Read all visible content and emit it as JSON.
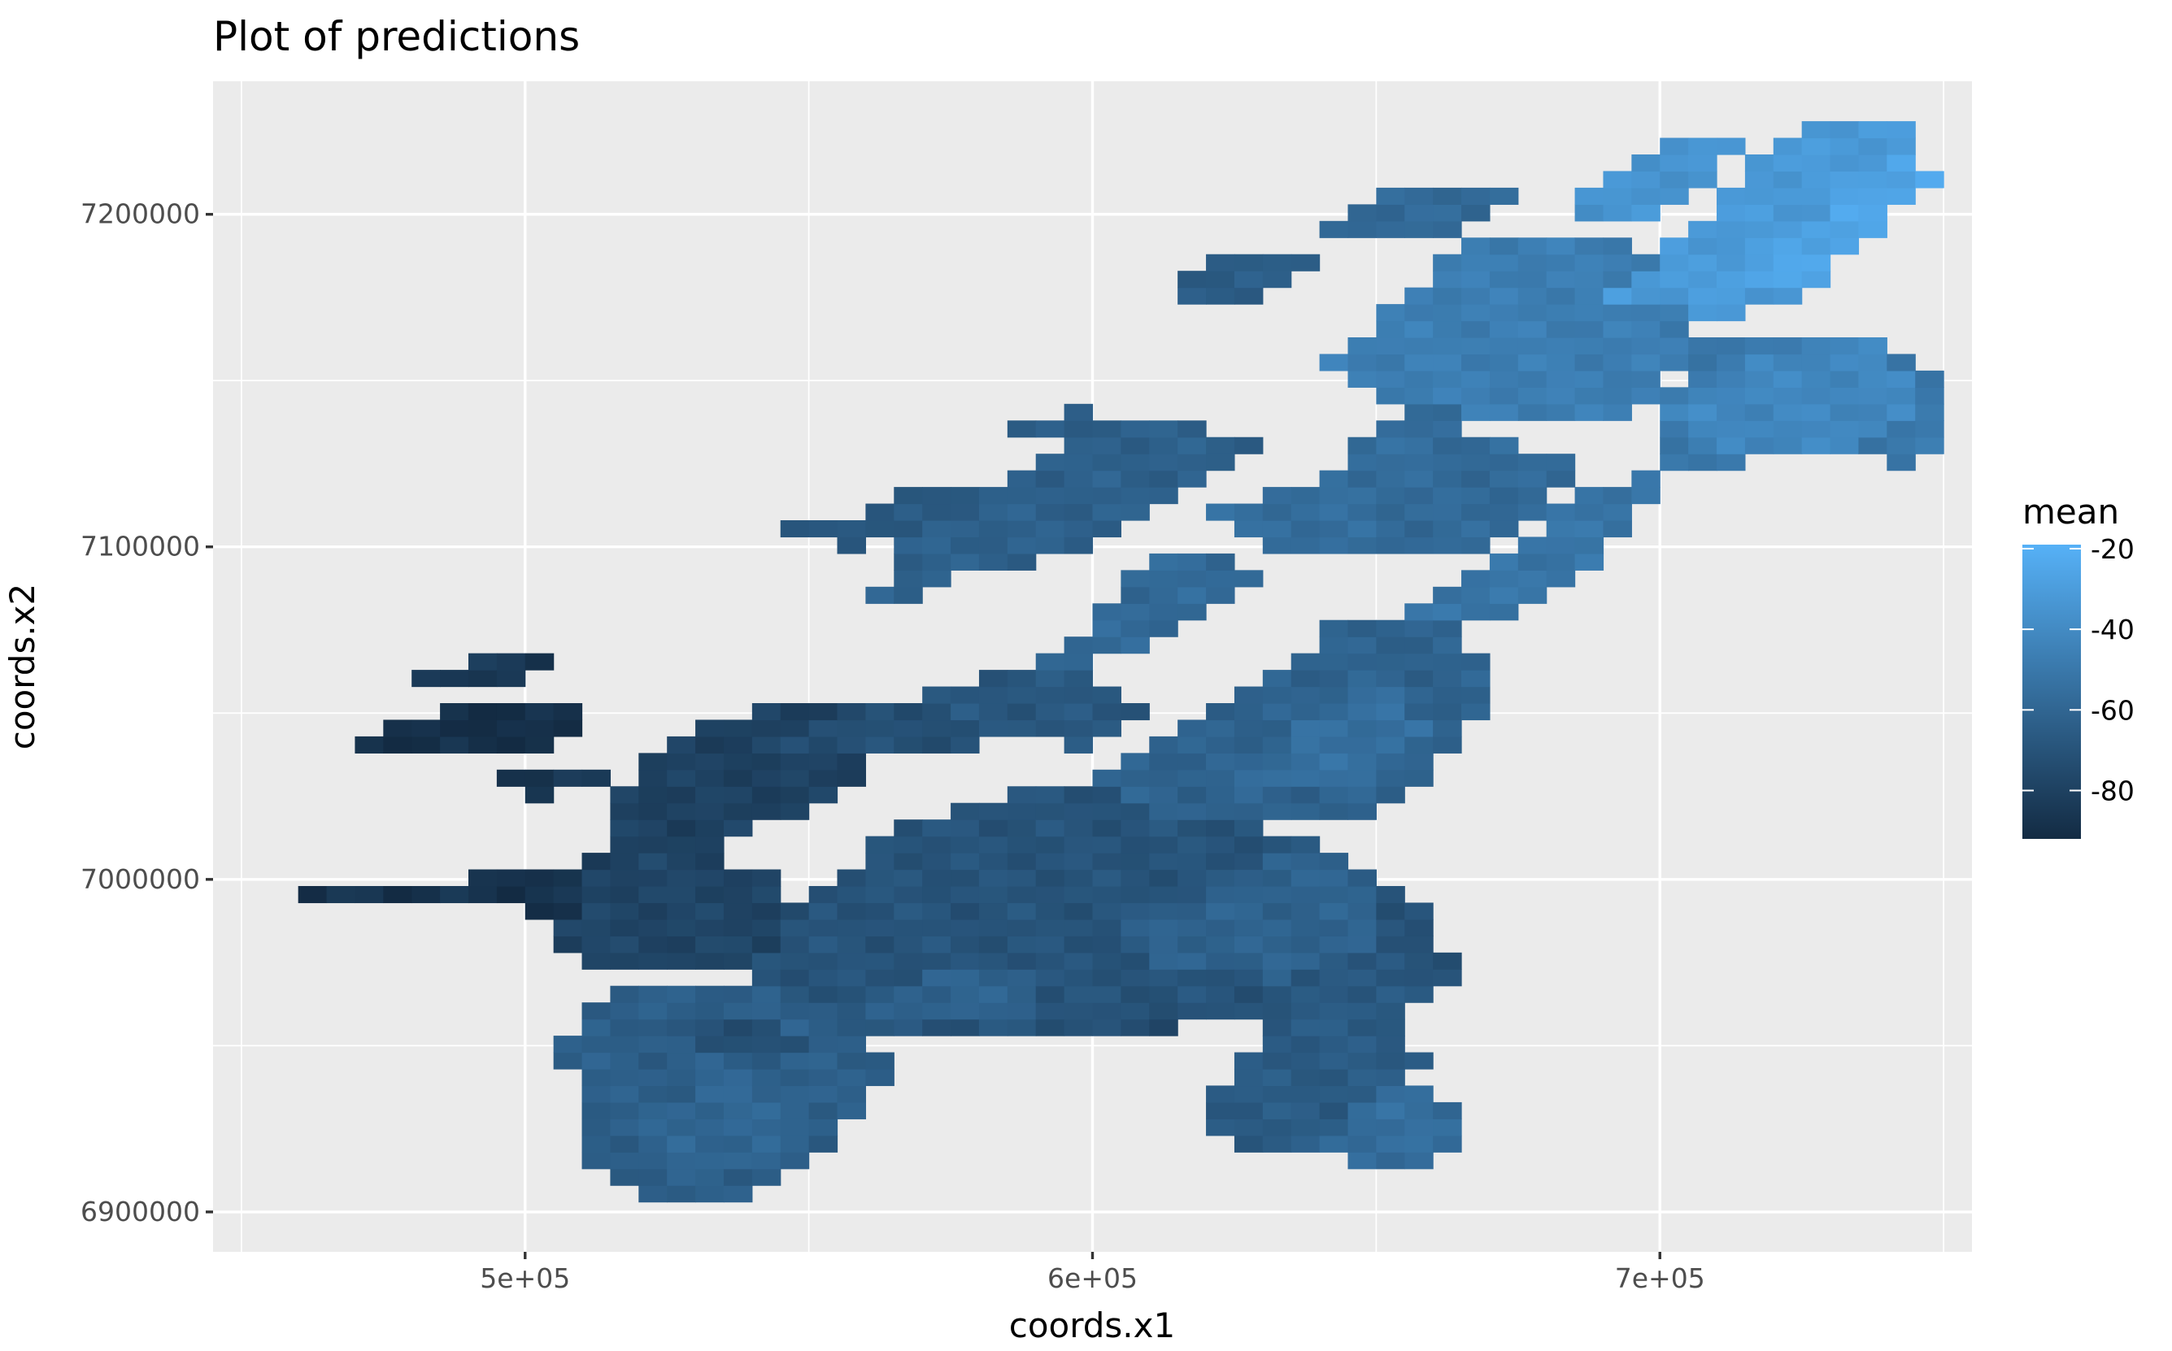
{
  "chart_data": {
    "type": "heatmap",
    "title": "Plot of predictions",
    "xlabel": "coords.x1",
    "ylabel": "coords.x2",
    "xlim": [
      445000,
      755000
    ],
    "ylim": [
      6888000,
      7240000
    ],
    "x_ticks": [
      {
        "value": 500000,
        "label": "5e+05"
      },
      {
        "value": 600000,
        "label": "6e+05"
      },
      {
        "value": 700000,
        "label": "7e+05"
      }
    ],
    "y_ticks": [
      {
        "value": 6900000,
        "label": "6900000"
      },
      {
        "value": 7000000,
        "label": "7000000"
      },
      {
        "value": 7100000,
        "label": "7100000"
      },
      {
        "value": 7200000,
        "label": "7200000"
      }
    ],
    "grid": true,
    "legend": {
      "title": "mean",
      "position": "right",
      "min": -92,
      "max": -19,
      "ticks": [
        {
          "value": -20,
          "label": "-20"
        },
        {
          "value": -40,
          "label": "-40"
        },
        {
          "value": -60,
          "label": "-60"
        },
        {
          "value": -80,
          "label": "-80"
        }
      ],
      "low_color": "#132b43",
      "high_color": "#56b1f7"
    },
    "cell_size": [
      5000,
      5000
    ],
    "regions": [
      {
        "mean": -88,
        "polygon": [
          [
            460000,
            6998000
          ],
          [
            485000,
            7000000
          ],
          [
            510000,
            7003000
          ],
          [
            515000,
            7000000
          ],
          [
            510000,
            6990000
          ],
          [
            480000,
            6992000
          ],
          [
            462000,
            6992000
          ]
        ]
      },
      {
        "mean": -90,
        "polygon": [
          [
            470000,
            7040000
          ],
          [
            485000,
            7052000
          ],
          [
            500000,
            7056000
          ],
          [
            512000,
            7050000
          ],
          [
            505000,
            7040000
          ],
          [
            485000,
            7038000
          ]
        ]
      },
      {
        "mean": -85,
        "polygon": [
          [
            480000,
            7060000
          ],
          [
            495000,
            7068000
          ],
          [
            505000,
            7066000
          ],
          [
            500000,
            7058000
          ],
          [
            488000,
            7058000
          ]
        ]
      },
      {
        "mean": -86,
        "polygon": [
          [
            490000,
            7028000
          ],
          [
            505000,
            7035000
          ],
          [
            515000,
            7030000
          ],
          [
            505000,
            7025000
          ]
        ]
      },
      {
        "mean": -80,
        "polygon": [
          [
            512000,
            7004000
          ],
          [
            518000,
            7030000
          ],
          [
            530000,
            7045000
          ],
          [
            545000,
            7055000
          ],
          [
            560000,
            7050000
          ],
          [
            560000,
            7030000
          ],
          [
            545000,
            7018000
          ],
          [
            530000,
            7005000
          ]
        ]
      },
      {
        "mean": -78,
        "polygon": [
          [
            505000,
            6980000
          ],
          [
            510000,
            7000000
          ],
          [
            525000,
            7010000
          ],
          [
            545000,
            7000000
          ],
          [
            550000,
            6985000
          ],
          [
            535000,
            6972000
          ],
          [
            515000,
            6972000
          ]
        ]
      },
      {
        "mean": -70,
        "polygon": [
          [
            535000,
            6965000
          ],
          [
            545000,
            6985000
          ],
          [
            555000,
            7000000
          ],
          [
            565000,
            7015000
          ],
          [
            590000,
            7028000
          ],
          [
            615000,
            7025000
          ],
          [
            640000,
            7010000
          ],
          [
            660000,
            6990000
          ],
          [
            665000,
            6970000
          ],
          [
            650000,
            6955000
          ],
          [
            620000,
            6958000
          ],
          [
            600000,
            6955000
          ],
          [
            580000,
            6950000
          ],
          [
            560000,
            6955000
          ]
        ]
      },
      {
        "mean": -64,
        "polygon": [
          [
            505000,
            6950000
          ],
          [
            515000,
            6965000
          ],
          [
            535000,
            6970000
          ],
          [
            555000,
            6960000
          ],
          [
            565000,
            6945000
          ],
          [
            560000,
            6930000
          ],
          [
            550000,
            6915000
          ],
          [
            535000,
            6903000
          ],
          [
            520000,
            6905000
          ],
          [
            508000,
            6915000
          ],
          [
            512000,
            6935000
          ]
        ]
      },
      {
        "mean": -60,
        "polygon": [
          [
            520000,
            6925000
          ],
          [
            535000,
            6945000
          ],
          [
            550000,
            6935000
          ],
          [
            545000,
            6915000
          ],
          [
            530000,
            6910000
          ]
        ]
      },
      {
        "mean": -72,
        "polygon": [
          [
            525000,
            6958000
          ],
          [
            545000,
            6960000
          ],
          [
            548000,
            6950000
          ],
          [
            530000,
            6948000
          ]
        ]
      },
      {
        "mean": -62,
        "polygon": [
          [
            560000,
            6960000
          ],
          [
            575000,
            6975000
          ],
          [
            590000,
            6972000
          ],
          [
            590000,
            6960000
          ]
        ]
      },
      {
        "mean": -74,
        "polygon": [
          [
            600000,
            6958000
          ],
          [
            615000,
            6962000
          ],
          [
            618000,
            6952000
          ],
          [
            603000,
            6950000
          ]
        ]
      },
      {
        "mean": -62,
        "polygon": [
          [
            605000,
            6985000
          ],
          [
            625000,
            7000000
          ],
          [
            640000,
            7012000
          ],
          [
            652000,
            6998000
          ],
          [
            650000,
            6980000
          ],
          [
            635000,
            6970000
          ],
          [
            615000,
            6972000
          ]
        ]
      },
      {
        "mean": -66,
        "polygon": [
          [
            620000,
            6930000
          ],
          [
            630000,
            6955000
          ],
          [
            645000,
            6975000
          ],
          [
            655000,
            6965000
          ],
          [
            658000,
            6945000
          ],
          [
            655000,
            6925000
          ],
          [
            640000,
            6918000
          ],
          [
            625000,
            6920000
          ]
        ]
      },
      {
        "mean": -56,
        "polygon": [
          [
            640000,
            6920000
          ],
          [
            650000,
            6935000
          ],
          [
            660000,
            6940000
          ],
          [
            665000,
            6925000
          ],
          [
            660000,
            6915000
          ],
          [
            648000,
            6914000
          ]
        ]
      },
      {
        "mean": -62,
        "polygon": [
          [
            598000,
            7030000
          ],
          [
            612000,
            7045000
          ],
          [
            630000,
            7060000
          ],
          [
            645000,
            7080000
          ],
          [
            665000,
            7075000
          ],
          [
            672000,
            7060000
          ],
          [
            665000,
            7040000
          ],
          [
            650000,
            7020000
          ],
          [
            630000,
            7015000
          ],
          [
            612000,
            7020000
          ]
        ]
      },
      {
        "mean": -55,
        "polygon": [
          [
            625000,
            7030000
          ],
          [
            640000,
            7050000
          ],
          [
            650000,
            7060000
          ],
          [
            660000,
            7045000
          ],
          [
            650000,
            7030000
          ],
          [
            635000,
            7025000
          ]
        ]
      },
      {
        "mean": -72,
        "polygon": [
          [
            545000,
            7040000
          ],
          [
            560000,
            7052000
          ],
          [
            580000,
            7055000
          ],
          [
            585000,
            7042000
          ],
          [
            565000,
            7035000
          ]
        ]
      },
      {
        "mean": -68,
        "polygon": [
          [
            570000,
            7055000
          ],
          [
            585000,
            7063000
          ],
          [
            600000,
            7062000
          ],
          [
            610000,
            7050000
          ],
          [
            598000,
            7040000
          ],
          [
            580000,
            7045000
          ]
        ]
      },
      {
        "mean": -58,
        "polygon": [
          [
            585000,
            7063000
          ],
          [
            600000,
            7075000
          ],
          [
            605000,
            7090000
          ],
          [
            615000,
            7100000
          ],
          [
            630000,
            7092000
          ],
          [
            620000,
            7078000
          ],
          [
            605000,
            7066000
          ]
        ]
      },
      {
        "mean": -63,
        "polygon": [
          [
            560000,
            7080000
          ],
          [
            575000,
            7090000
          ],
          [
            590000,
            7095000
          ],
          [
            600000,
            7100000
          ],
          [
            610000,
            7110000
          ],
          [
            620000,
            7120000
          ],
          [
            630000,
            7130000
          ],
          [
            615000,
            7140000
          ],
          [
            600000,
            7138000
          ],
          [
            590000,
            7125000
          ],
          [
            575000,
            7112000
          ],
          [
            565000,
            7098000
          ]
        ]
      },
      {
        "mean": -56,
        "polygon": [
          [
            620000,
            7110000
          ],
          [
            640000,
            7120000
          ],
          [
            650000,
            7135000
          ],
          [
            660000,
            7145000
          ],
          [
            670000,
            7130000
          ],
          [
            660000,
            7110000
          ],
          [
            645000,
            7095000
          ],
          [
            630000,
            7100000
          ]
        ]
      },
      {
        "mean": -52,
        "polygon": [
          [
            655000,
            7080000
          ],
          [
            670000,
            7095000
          ],
          [
            685000,
            7115000
          ],
          [
            700000,
            7125000
          ],
          [
            695000,
            7105000
          ],
          [
            685000,
            7090000
          ],
          [
            672000,
            7075000
          ]
        ]
      },
      {
        "mean": -58,
        "polygon": [
          [
            645000,
            7100000
          ],
          [
            655000,
            7120000
          ],
          [
            670000,
            7135000
          ],
          [
            685000,
            7125000
          ],
          [
            680000,
            7110000
          ],
          [
            665000,
            7095000
          ]
        ]
      },
      {
        "mean": -60,
        "polygon": [
          [
            655000,
            7150000
          ],
          [
            670000,
            7170000
          ],
          [
            680000,
            7180000
          ],
          [
            695000,
            7175000
          ],
          [
            690000,
            7160000
          ],
          [
            675000,
            7148000
          ]
        ]
      },
      {
        "mean": -47,
        "polygon": [
          [
            640000,
            7155000
          ],
          [
            655000,
            7175000
          ],
          [
            665000,
            7190000
          ],
          [
            680000,
            7195000
          ],
          [
            695000,
            7190000
          ],
          [
            705000,
            7175000
          ],
          [
            705000,
            7155000
          ],
          [
            695000,
            7140000
          ],
          [
            680000,
            7138000
          ],
          [
            665000,
            7140000
          ],
          [
            650000,
            7145000
          ]
        ]
      },
      {
        "mean": -50,
        "polygon": [
          [
            700000,
            7120000
          ],
          [
            715000,
            7125000
          ],
          [
            730000,
            7130000
          ],
          [
            745000,
            7123000
          ],
          [
            752000,
            7130000
          ],
          [
            748000,
            7150000
          ],
          [
            740000,
            7160000
          ],
          [
            730000,
            7165000
          ],
          [
            715000,
            7165000
          ],
          [
            705000,
            7160000
          ],
          [
            700000,
            7140000
          ]
        ]
      },
      {
        "mean": -42,
        "polygon": [
          [
            700000,
            7140000
          ],
          [
            720000,
            7160000
          ],
          [
            738000,
            7162000
          ],
          [
            745000,
            7150000
          ],
          [
            742000,
            7135000
          ],
          [
            728000,
            7128000
          ],
          [
            712000,
            7128000
          ]
        ]
      },
      {
        "mean": -32,
        "polygon": [
          [
            690000,
            7175000
          ],
          [
            705000,
            7195000
          ],
          [
            715000,
            7215000
          ],
          [
            725000,
            7225000
          ],
          [
            740000,
            7230000
          ],
          [
            748000,
            7222000
          ],
          [
            740000,
            7205000
          ],
          [
            728000,
            7190000
          ],
          [
            722000,
            7172000
          ],
          [
            710000,
            7168000
          ]
        ]
      },
      {
        "mean": -26,
        "polygon": [
          [
            712000,
            7180000
          ],
          [
            725000,
            7195000
          ],
          [
            735000,
            7210000
          ],
          [
            745000,
            7220000
          ],
          [
            748000,
            7210000
          ],
          [
            738000,
            7195000
          ],
          [
            728000,
            7180000
          ]
        ]
      },
      {
        "mean": -35,
        "polygon": [
          [
            680000,
            7195000
          ],
          [
            690000,
            7210000
          ],
          [
            700000,
            7222000
          ],
          [
            715000,
            7225000
          ],
          [
            708000,
            7210000
          ],
          [
            695000,
            7198000
          ]
        ]
      },
      {
        "mean": -58,
        "polygon": [
          [
            640000,
            7195000
          ],
          [
            650000,
            7205000
          ],
          [
            665000,
            7210000
          ],
          [
            675000,
            7205000
          ],
          [
            668000,
            7196000
          ],
          [
            652000,
            7192000
          ]
        ]
      },
      {
        "mean": -68,
        "polygon": [
          [
            545000,
            7105000
          ],
          [
            560000,
            7110000
          ],
          [
            570000,
            7120000
          ],
          [
            580000,
            7118000
          ],
          [
            572000,
            7105000
          ],
          [
            558000,
            7100000
          ]
        ]
      },
      {
        "mean": -66,
        "polygon": [
          [
            585000,
            7135000
          ],
          [
            595000,
            7142000
          ],
          [
            603000,
            7138000
          ],
          [
            598000,
            7130000
          ]
        ]
      },
      {
        "mean": -65,
        "polygon": [
          [
            610000,
            7178000
          ],
          [
            620000,
            7185000
          ],
          [
            630000,
            7190000
          ],
          [
            640000,
            7185000
          ],
          [
            632000,
            7176000
          ],
          [
            620000,
            7174000
          ]
        ]
      }
    ]
  }
}
